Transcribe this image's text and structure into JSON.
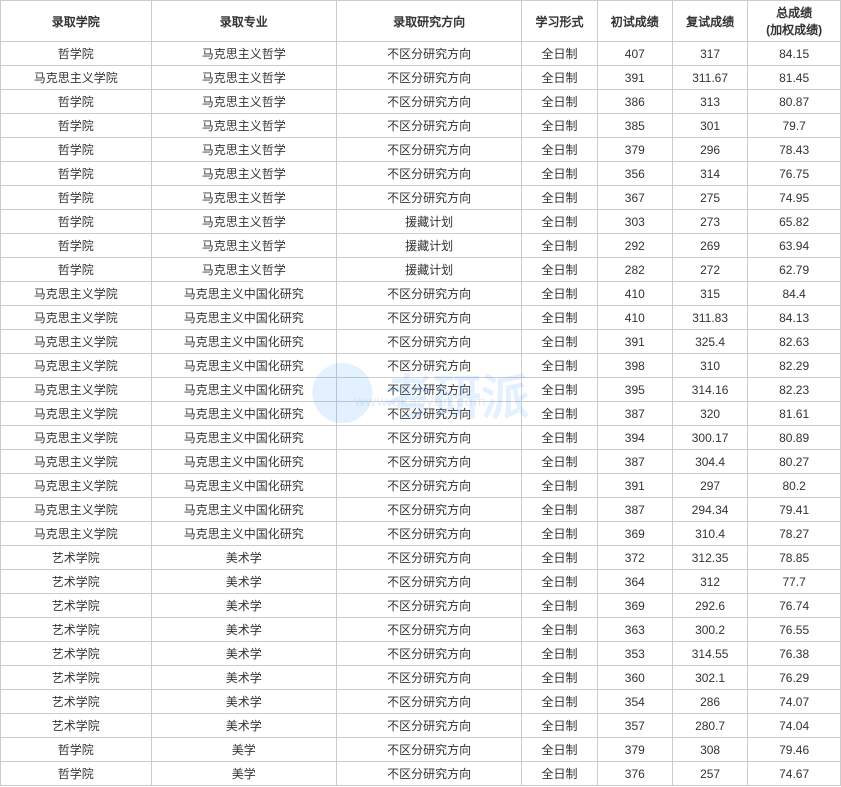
{
  "table": {
    "headers": {
      "college": "录取学院",
      "major": "录取专业",
      "direction": "录取研究方向",
      "studymode": "学习形式",
      "score1": "初试成绩",
      "score2": "复试成绩",
      "total_top": "总成绩",
      "total_bottom": "(加权成绩)"
    },
    "rows": [
      [
        "哲学院",
        "马克思主义哲学",
        "不区分研究方向",
        "全日制",
        "407",
        "317",
        "84.15"
      ],
      [
        "马克思主义学院",
        "马克思主义哲学",
        "不区分研究方向",
        "全日制",
        "391",
        "311.67",
        "81.45"
      ],
      [
        "哲学院",
        "马克思主义哲学",
        "不区分研究方向",
        "全日制",
        "386",
        "313",
        "80.87"
      ],
      [
        "哲学院",
        "马克思主义哲学",
        "不区分研究方向",
        "全日制",
        "385",
        "301",
        "79.7"
      ],
      [
        "哲学院",
        "马克思主义哲学",
        "不区分研究方向",
        "全日制",
        "379",
        "296",
        "78.43"
      ],
      [
        "哲学院",
        "马克思主义哲学",
        "不区分研究方向",
        "全日制",
        "356",
        "314",
        "76.75"
      ],
      [
        "哲学院",
        "马克思主义哲学",
        "不区分研究方向",
        "全日制",
        "367",
        "275",
        "74.95"
      ],
      [
        "哲学院",
        "马克思主义哲学",
        "援藏计划",
        "全日制",
        "303",
        "273",
        "65.82"
      ],
      [
        "哲学院",
        "马克思主义哲学",
        "援藏计划",
        "全日制",
        "292",
        "269",
        "63.94"
      ],
      [
        "哲学院",
        "马克思主义哲学",
        "援藏计划",
        "全日制",
        "282",
        "272",
        "62.79"
      ],
      [
        "马克思主义学院",
        "马克思主义中国化研究",
        "不区分研究方向",
        "全日制",
        "410",
        "315",
        "84.4"
      ],
      [
        "马克思主义学院",
        "马克思主义中国化研究",
        "不区分研究方向",
        "全日制",
        "410",
        "311.83",
        "84.13"
      ],
      [
        "马克思主义学院",
        "马克思主义中国化研究",
        "不区分研究方向",
        "全日制",
        "391",
        "325.4",
        "82.63"
      ],
      [
        "马克思主义学院",
        "马克思主义中国化研究",
        "不区分研究方向",
        "全日制",
        "398",
        "310",
        "82.29"
      ],
      [
        "马克思主义学院",
        "马克思主义中国化研究",
        "不区分研究方向",
        "全日制",
        "395",
        "314.16",
        "82.23"
      ],
      [
        "马克思主义学院",
        "马克思主义中国化研究",
        "不区分研究方向",
        "全日制",
        "387",
        "320",
        "81.61"
      ],
      [
        "马克思主义学院",
        "马克思主义中国化研究",
        "不区分研究方向",
        "全日制",
        "394",
        "300.17",
        "80.89"
      ],
      [
        "马克思主义学院",
        "马克思主义中国化研究",
        "不区分研究方向",
        "全日制",
        "387",
        "304.4",
        "80.27"
      ],
      [
        "马克思主义学院",
        "马克思主义中国化研究",
        "不区分研究方向",
        "全日制",
        "391",
        "297",
        "80.2"
      ],
      [
        "马克思主义学院",
        "马克思主义中国化研究",
        "不区分研究方向",
        "全日制",
        "387",
        "294.34",
        "79.41"
      ],
      [
        "马克思主义学院",
        "马克思主义中国化研究",
        "不区分研究方向",
        "全日制",
        "369",
        "310.4",
        "78.27"
      ],
      [
        "艺术学院",
        "美术学",
        "不区分研究方向",
        "全日制",
        "372",
        "312.35",
        "78.85"
      ],
      [
        "艺术学院",
        "美术学",
        "不区分研究方向",
        "全日制",
        "364",
        "312",
        "77.7"
      ],
      [
        "艺术学院",
        "美术学",
        "不区分研究方向",
        "全日制",
        "369",
        "292.6",
        "76.74"
      ],
      [
        "艺术学院",
        "美术学",
        "不区分研究方向",
        "全日制",
        "363",
        "300.2",
        "76.55"
      ],
      [
        "艺术学院",
        "美术学",
        "不区分研究方向",
        "全日制",
        "353",
        "314.55",
        "76.38"
      ],
      [
        "艺术学院",
        "美术学",
        "不区分研究方向",
        "全日制",
        "360",
        "302.1",
        "76.29"
      ],
      [
        "艺术学院",
        "美术学",
        "不区分研究方向",
        "全日制",
        "354",
        "286",
        "74.07"
      ],
      [
        "艺术学院",
        "美术学",
        "不区分研究方向",
        "全日制",
        "357",
        "280.7",
        "74.04"
      ],
      [
        "哲学院",
        "美学",
        "不区分研究方向",
        "全日制",
        "379",
        "308",
        "79.46"
      ],
      [
        "哲学院",
        "美学",
        "不区分研究方向",
        "全日制",
        "376",
        "257",
        "74.67"
      ]
    ]
  },
  "watermark": {
    "text": "考研派",
    "url": "www.okaoyan.com"
  },
  "styling": {
    "border_color": "#cccccc",
    "text_color": "#333333",
    "background_color": "#ffffff",
    "font_size": 12,
    "header_font_weight": "bold",
    "watermark_color": "#4a9eff",
    "watermark_opacity": 0.15
  }
}
